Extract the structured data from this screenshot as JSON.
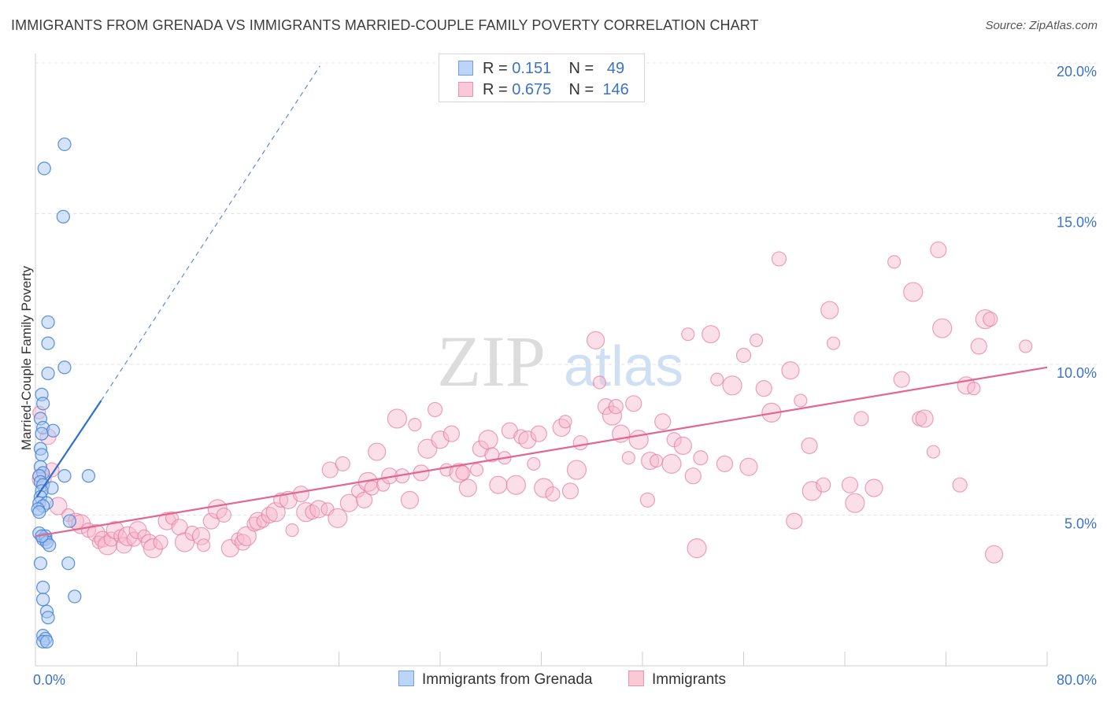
{
  "header": {
    "title": "IMMIGRANTS FROM GRENADA VS IMMIGRANTS MARRIED-COUPLE FAMILY POVERTY CORRELATION CHART",
    "source": "Source: ZipAtlas.com"
  },
  "watermark": {
    "zip": "ZIP",
    "atlas": "atlas"
  },
  "legend": {
    "rows": [
      {
        "r_label": "R =",
        "r_value": "0.151",
        "n_label": "N =",
        "n_value": "49"
      },
      {
        "r_label": "R =",
        "r_value": "0.675",
        "n_label": "N =",
        "n_value": "146"
      }
    ]
  },
  "bottom_legend": {
    "items": [
      {
        "label": "Immigrants from Grenada"
      },
      {
        "label": "Immigrants"
      }
    ]
  },
  "chart_data": {
    "type": "scatter",
    "title": "IMMIGRANTS FROM GRENADA VS IMMIGRANTS MARRIED-COUPLE FAMILY POVERTY CORRELATION CHART",
    "xlabel": "",
    "ylabel": "Married-Couple Family Poverty",
    "xlim": [
      0,
      80
    ],
    "ylim": [
      0,
      20
    ],
    "x_tick_labels": [
      "0.0%",
      "80.0%"
    ],
    "y_ticks": [
      5,
      10,
      15,
      20
    ],
    "y_tick_labels": [
      "5.0%",
      "10.0%",
      "15.0%",
      "20.0%"
    ],
    "grid": true,
    "legend_position": "top-center",
    "colors": {
      "blue_fill": "#a9c8f1",
      "blue_stroke": "#4a84d6",
      "blue_line": "#2f6fd0",
      "pink_fill": "#f6b8cb",
      "pink_stroke": "#e57aa0",
      "pink_line": "#e2668f",
      "tick_label": "#3b73c6"
    },
    "series": [
      {
        "name": "Immigrants from Grenada",
        "R": 0.151,
        "N": 49,
        "trend": {
          "x": [
            0.1,
            5.2
          ],
          "y": [
            5.6,
            8.8
          ]
        },
        "trend_extension": {
          "x": [
            5.2,
            22.5
          ],
          "y": [
            8.8,
            19.9
          ]
        },
        "points": [
          [
            2.3,
            17.3
          ],
          [
            0.7,
            16.5
          ],
          [
            2.2,
            14.9
          ],
          [
            1.0,
            11.4
          ],
          [
            1.0,
            10.7
          ],
          [
            1.0,
            9.7
          ],
          [
            2.3,
            9.9
          ],
          [
            0.5,
            9.0
          ],
          [
            0.6,
            8.7
          ],
          [
            0.4,
            8.2
          ],
          [
            0.6,
            7.9
          ],
          [
            1.4,
            7.8
          ],
          [
            0.5,
            7.7
          ],
          [
            0.4,
            7.2
          ],
          [
            0.5,
            7.0
          ],
          [
            0.4,
            6.6
          ],
          [
            0.6,
            6.4
          ],
          [
            0.3,
            6.3
          ],
          [
            2.3,
            6.3
          ],
          [
            4.2,
            6.3
          ],
          [
            0.4,
            6.1
          ],
          [
            0.6,
            6.0
          ],
          [
            1.3,
            5.9
          ],
          [
            0.5,
            5.8
          ],
          [
            0.4,
            5.6
          ],
          [
            0.3,
            5.4
          ],
          [
            0.9,
            5.4
          ],
          [
            0.6,
            5.3
          ],
          [
            0.2,
            5.2
          ],
          [
            0.3,
            5.1
          ],
          [
            2.7,
            4.8
          ],
          [
            0.3,
            4.4
          ],
          [
            0.6,
            4.2
          ],
          [
            0.8,
            4.3
          ],
          [
            0.8,
            4.2
          ],
          [
            0.9,
            4.1
          ],
          [
            1.1,
            4.0
          ],
          [
            0.5,
            4.3
          ],
          [
            0.4,
            3.4
          ],
          [
            2.6,
            3.4
          ],
          [
            0.6,
            2.6
          ],
          [
            3.1,
            2.3
          ],
          [
            0.6,
            2.2
          ],
          [
            0.9,
            1.8
          ],
          [
            1.0,
            1.6
          ],
          [
            0.6,
            1.0
          ],
          [
            0.8,
            0.9
          ],
          [
            0.6,
            0.8
          ],
          [
            0.9,
            0.8
          ]
        ]
      },
      {
        "name": "Immigrants",
        "R": 0.675,
        "N": 146,
        "trend": {
          "x": [
            0.0,
            80.0
          ],
          "y": [
            4.3,
            9.9
          ]
        },
        "points": [
          [
            0.3,
            8.4
          ],
          [
            1.0,
            7.6
          ],
          [
            0.5,
            6.2
          ],
          [
            1.3,
            6.5
          ],
          [
            1.8,
            5.3
          ],
          [
            2.6,
            5.0
          ],
          [
            3.2,
            4.8
          ],
          [
            3.6,
            4.7
          ],
          [
            4.2,
            4.5
          ],
          [
            4.8,
            4.4
          ],
          [
            5.0,
            4.1
          ],
          [
            5.3,
            4.2
          ],
          [
            5.7,
            4.0
          ],
          [
            6.0,
            4.2
          ],
          [
            6.3,
            4.5
          ],
          [
            6.7,
            4.3
          ],
          [
            7.0,
            4.0
          ],
          [
            7.3,
            4.3
          ],
          [
            7.8,
            4.2
          ],
          [
            8.1,
            4.5
          ],
          [
            8.6,
            4.3
          ],
          [
            9.0,
            4.1
          ],
          [
            9.3,
            3.9
          ],
          [
            9.9,
            4.1
          ],
          [
            10.4,
            4.8
          ],
          [
            10.8,
            4.9
          ],
          [
            11.4,
            4.6
          ],
          [
            11.8,
            4.1
          ],
          [
            12.4,
            4.4
          ],
          [
            13.1,
            4.3
          ],
          [
            13.3,
            4.0
          ],
          [
            13.9,
            4.8
          ],
          [
            14.4,
            5.2
          ],
          [
            14.9,
            5.0
          ],
          [
            15.4,
            3.9
          ],
          [
            16.0,
            4.2
          ],
          [
            16.4,
            4.1
          ],
          [
            16.7,
            4.3
          ],
          [
            17.3,
            4.7
          ],
          [
            17.6,
            4.8
          ],
          [
            18.0,
            4.8
          ],
          [
            18.5,
            5.0
          ],
          [
            19.0,
            5.1
          ],
          [
            19.4,
            5.5
          ],
          [
            20.0,
            5.5
          ],
          [
            20.3,
            4.5
          ],
          [
            21.0,
            5.7
          ],
          [
            21.4,
            5.1
          ],
          [
            21.9,
            5.1
          ],
          [
            22.4,
            5.2
          ],
          [
            23.1,
            5.2
          ],
          [
            23.3,
            6.5
          ],
          [
            23.9,
            4.9
          ],
          [
            24.3,
            6.7
          ],
          [
            24.8,
            5.4
          ],
          [
            25.5,
            5.8
          ],
          [
            26.0,
            5.5
          ],
          [
            26.3,
            6.1
          ],
          [
            26.6,
            5.9
          ],
          [
            27.0,
            7.1
          ],
          [
            27.5,
            6.0
          ],
          [
            28.0,
            6.3
          ],
          [
            28.6,
            8.2
          ],
          [
            29.0,
            6.3
          ],
          [
            29.6,
            5.5
          ],
          [
            30.0,
            8.0
          ],
          [
            30.5,
            6.4
          ],
          [
            31.0,
            7.2
          ],
          [
            31.6,
            8.5
          ],
          [
            32.0,
            7.5
          ],
          [
            32.5,
            6.5
          ],
          [
            32.9,
            7.7
          ],
          [
            33.5,
            6.4
          ],
          [
            33.8,
            6.4
          ],
          [
            34.2,
            5.9
          ],
          [
            34.9,
            6.5
          ],
          [
            35.2,
            7.2
          ],
          [
            35.8,
            7.5
          ],
          [
            36.1,
            7.0
          ],
          [
            36.6,
            6.0
          ],
          [
            37.1,
            6.9
          ],
          [
            37.5,
            7.8
          ],
          [
            38.0,
            6.0
          ],
          [
            38.4,
            7.6
          ],
          [
            38.9,
            7.5
          ],
          [
            39.4,
            6.7
          ],
          [
            39.8,
            7.7
          ],
          [
            40.2,
            5.9
          ],
          [
            40.9,
            5.7
          ],
          [
            41.6,
            7.9
          ],
          [
            41.9,
            8.1
          ],
          [
            42.3,
            5.8
          ],
          [
            42.8,
            6.5
          ],
          [
            43.1,
            7.4
          ],
          [
            44.3,
            10.8
          ],
          [
            44.6,
            9.4
          ],
          [
            45.1,
            8.6
          ],
          [
            45.6,
            8.3
          ],
          [
            45.9,
            8.6
          ],
          [
            46.3,
            7.7
          ],
          [
            46.9,
            6.9
          ],
          [
            47.3,
            8.7
          ],
          [
            47.7,
            7.5
          ],
          [
            48.4,
            5.5
          ],
          [
            48.6,
            6.8
          ],
          [
            49.1,
            6.8
          ],
          [
            49.6,
            8.1
          ],
          [
            50.3,
            6.7
          ],
          [
            50.5,
            7.5
          ],
          [
            51.2,
            7.3
          ],
          [
            51.6,
            11.0
          ],
          [
            52.0,
            6.3
          ],
          [
            52.3,
            3.9
          ],
          [
            52.6,
            6.9
          ],
          [
            53.4,
            11.0
          ],
          [
            53.9,
            9.5
          ],
          [
            54.5,
            6.7
          ],
          [
            55.1,
            9.3
          ],
          [
            56.0,
            10.3
          ],
          [
            56.4,
            6.6
          ],
          [
            57.0,
            10.8
          ],
          [
            57.6,
            9.2
          ],
          [
            58.2,
            8.4
          ],
          [
            58.8,
            13.5
          ],
          [
            59.7,
            9.8
          ],
          [
            60.5,
            8.8
          ],
          [
            61.2,
            7.3
          ],
          [
            61.4,
            5.8
          ],
          [
            62.3,
            6.0
          ],
          [
            62.8,
            11.8
          ],
          [
            63.1,
            10.7
          ],
          [
            64.4,
            6.0
          ],
          [
            64.8,
            5.4
          ],
          [
            65.3,
            8.2
          ],
          [
            66.3,
            5.9
          ],
          [
            67.9,
            13.4
          ],
          [
            68.5,
            9.5
          ],
          [
            69.4,
            12.4
          ],
          [
            69.9,
            8.2
          ],
          [
            70.3,
            8.2
          ],
          [
            71.0,
            7.1
          ],
          [
            71.4,
            13.8
          ],
          [
            71.7,
            11.2
          ],
          [
            73.1,
            6.0
          ],
          [
            73.6,
            9.3
          ],
          [
            74.2,
            9.2
          ],
          [
            74.6,
            10.6
          ],
          [
            75.1,
            11.5
          ],
          [
            75.5,
            11.5
          ],
          [
            75.8,
            3.7
          ],
          [
            78.3,
            10.6
          ],
          [
            60.0,
            4.8
          ]
        ]
      }
    ]
  }
}
